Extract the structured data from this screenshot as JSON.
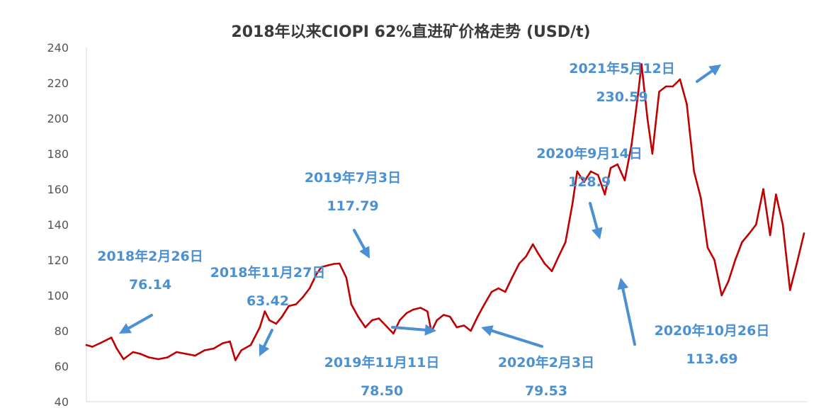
{
  "chart_data": {
    "type": "line",
    "title": "2018年以来CIOPI 62%直进矿价格走势 (USD/t)",
    "xlabel": "",
    "ylabel": "",
    "ylim": [
      40,
      240
    ],
    "yticks": [
      "40",
      "60",
      "80",
      "100",
      "120",
      "140",
      "160",
      "180",
      "200",
      "220",
      "240"
    ],
    "xlim": [
      "2018-01-02",
      "2022-05-06"
    ],
    "grid": false,
    "colors": {
      "line": "#c00000",
      "annotation": "#4a90d2",
      "axis": "#d9d9d9"
    },
    "series": [
      {
        "x": [
          "2018-01-02",
          "2018-01-15",
          "2018-02-01",
          "2018-02-26",
          "2018-03-10",
          "2018-03-25",
          "2018-04-15",
          "2018-05-01",
          "2018-05-20",
          "2018-06-10",
          "2018-06-30",
          "2018-07-20",
          "2018-08-10",
          "2018-08-30",
          "2018-09-20",
          "2018-10-10",
          "2018-10-30",
          "2018-11-15",
          "2018-11-27",
          "2018-12-10",
          "2018-12-31",
          "2019-01-20",
          "2019-01-31",
          "2019-02-10",
          "2019-02-25",
          "2019-03-10",
          "2019-03-25",
          "2019-04-10",
          "2019-04-25",
          "2019-05-10",
          "2019-05-25",
          "2019-06-05",
          "2019-06-20",
          "2019-07-03",
          "2019-07-15",
          "2019-07-30",
          "2019-08-10",
          "2019-08-25",
          "2019-09-10",
          "2019-09-25",
          "2019-10-10",
          "2019-10-25",
          "2019-11-11",
          "2019-11-25",
          "2019-12-10",
          "2019-12-25",
          "2020-01-10",
          "2020-01-25",
          "2020-02-03",
          "2020-02-15",
          "2020-03-01",
          "2020-03-15",
          "2020-03-30",
          "2020-04-15",
          "2020-04-30",
          "2020-05-15",
          "2020-05-30",
          "2020-06-15",
          "2020-06-30",
          "2020-07-15",
          "2020-07-30",
          "2020-08-15",
          "2020-08-30",
          "2020-09-14",
          "2020-09-25",
          "2020-10-10",
          "2020-10-26",
          "2020-11-10",
          "2020-11-25",
          "2020-12-10",
          "2020-12-21",
          "2021-01-05",
          "2021-01-20",
          "2021-02-05",
          "2021-02-20",
          "2021-03-05",
          "2021-03-20",
          "2021-04-05",
          "2021-04-20",
          "2021-05-05",
          "2021-05-12",
          "2021-05-25",
          "2021-06-05",
          "2021-06-20",
          "2021-07-05",
          "2021-07-20",
          "2021-08-05",
          "2021-08-20",
          "2021-09-05",
          "2021-09-20",
          "2021-10-05",
          "2021-10-20",
          "2021-11-05",
          "2021-11-20",
          "2021-12-05",
          "2021-12-20",
          "2022-01-05",
          "2022-01-20",
          "2022-02-05",
          "2022-02-20",
          "2022-03-05",
          "2022-03-20",
          "2022-04-05",
          "2022-04-20",
          "2022-05-06"
        ],
        "values": [
          72,
          71,
          73,
          76.14,
          70,
          64,
          68,
          67,
          65,
          64,
          65,
          68,
          67,
          66,
          69,
          70,
          73,
          74,
          63.42,
          69,
          72,
          82,
          91,
          86,
          84,
          88,
          94,
          95,
          99,
          104,
          112,
          116,
          117,
          117.79,
          118,
          110,
          95,
          88,
          82,
          86,
          87,
          83,
          78.5,
          86,
          90,
          92,
          93,
          91,
          79.53,
          86,
          89,
          88,
          82,
          83,
          80,
          88,
          95,
          102,
          104,
          102,
          110,
          118,
          122,
          128.9,
          124,
          118,
          113.69,
          122,
          130,
          151,
          170,
          164,
          170,
          168,
          157,
          172,
          174,
          165,
          185,
          215,
          230.59,
          200,
          180,
          215,
          218,
          218,
          222,
          208,
          170,
          155,
          127,
          120,
          100,
          108,
          120,
          130,
          135,
          140,
          160,
          134,
          157,
          140,
          103,
          118,
          135
        ]
      }
    ],
    "annotations": [
      {
        "label": "2018年2月26日",
        "value": "76.14",
        "x": "2018-02-26",
        "y": 76.14
      },
      {
        "label": "2018年11月27日",
        "value": "63.42",
        "x": "2018-11-27",
        "y": 63.42
      },
      {
        "label": "2019年7月3日",
        "value": "117.79",
        "x": "2019-07-03",
        "y": 117.79
      },
      {
        "label": "2019年11月11日",
        "value": "78.50",
        "x": "2019-11-11",
        "y": 78.5
      },
      {
        "label": "2020年2月3日",
        "value": "79.53",
        "x": "2020-02-03",
        "y": 79.53
      },
      {
        "label": "2020年9月14日",
        "value": "128.9",
        "x": "2020-09-14",
        "y": 128.9
      },
      {
        "label": "2020年10月26日",
        "value": "113.69",
        "x": "2020-10-26",
        "y": 113.69
      },
      {
        "label": "2021年5月12日",
        "value": "230.59",
        "x": "2021-05-12",
        "y": 230.59
      }
    ]
  }
}
